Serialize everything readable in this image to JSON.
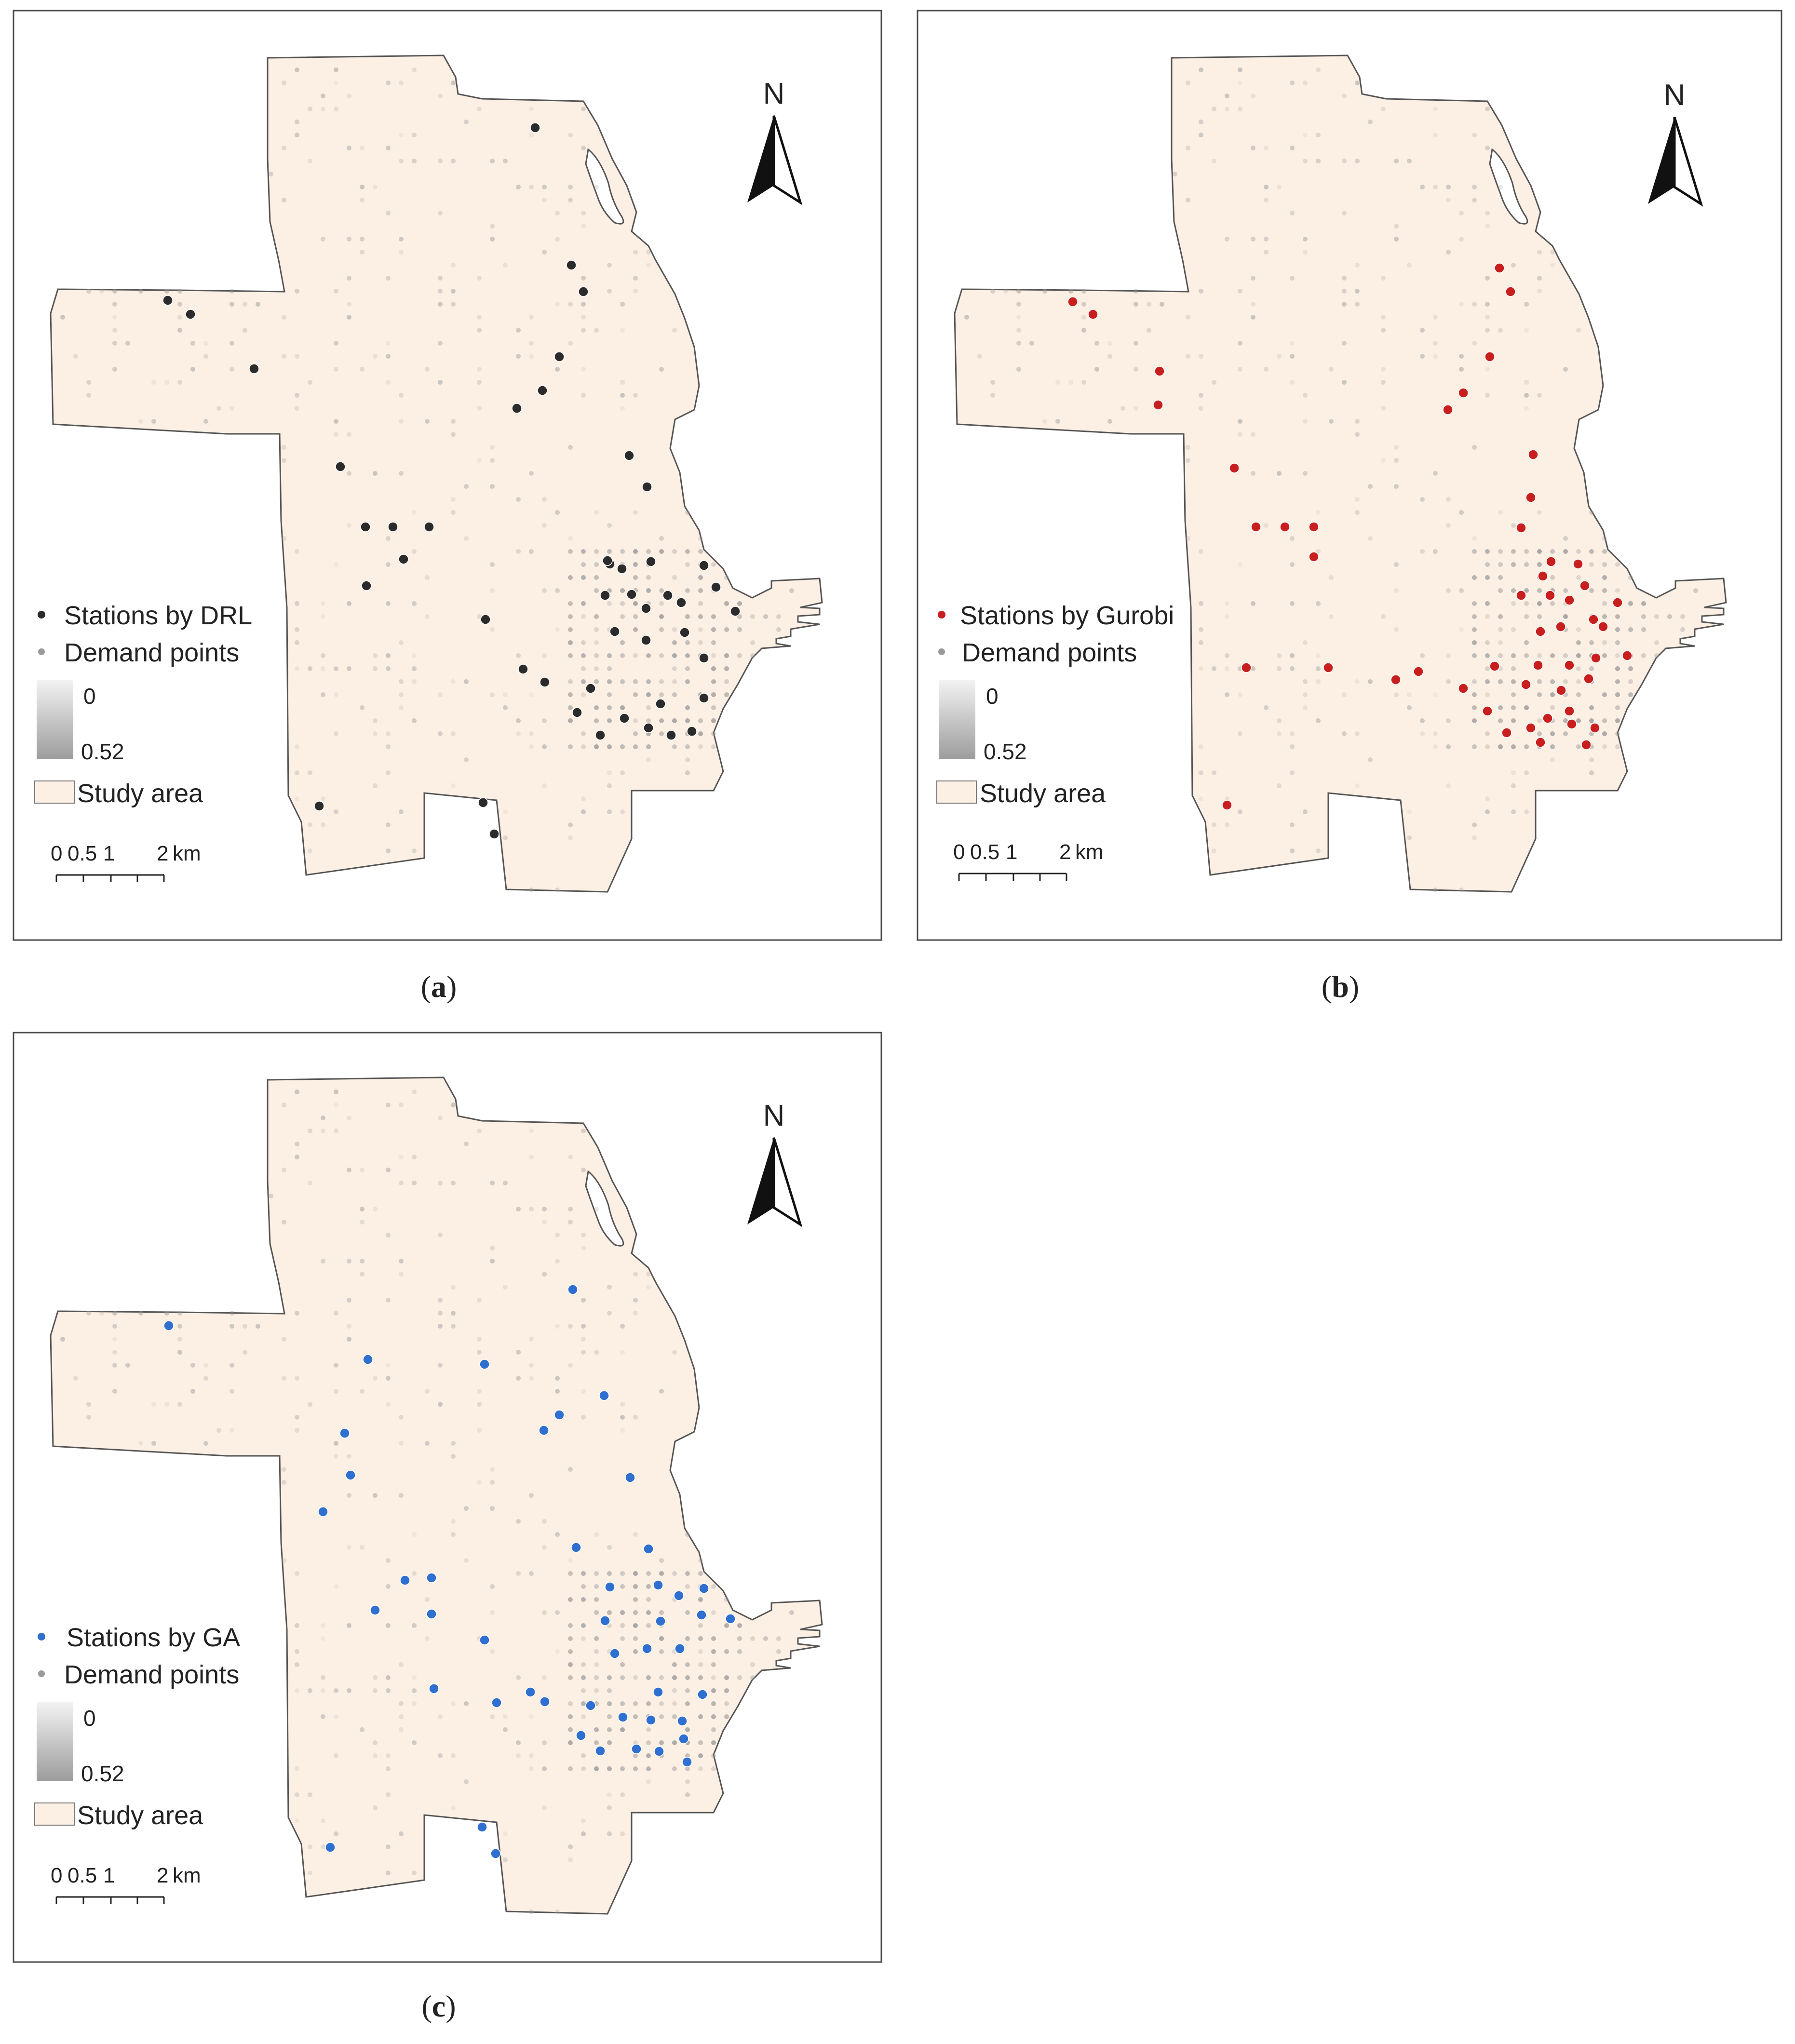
{
  "colors": {
    "frame": "#4a4a4a",
    "study_area_fill": "#fcefe3",
    "study_area_stroke": "#555555",
    "demand_point": "#9a9a9a",
    "demand_ramp_light": "#f3f3f3",
    "demand_ramp_dark": "#9c9c9c",
    "station_drl": "#2b2b2b",
    "station_gurobi": "#c81e1e",
    "station_ga": "#2f6fcf"
  },
  "panels": [
    {
      "id": "a",
      "caption_open": "(",
      "caption_letter": "a",
      "caption_close": ")",
      "north_label": "N",
      "legend": {
        "stations_label": "Stations by DRL",
        "demand_label": "Demand points",
        "ramp_min": "0",
        "ramp_max": "0.52",
        "area_label": "Study area"
      },
      "scale": {
        "t0": "0",
        "t1": "0.5",
        "t2": "1",
        "t3": "2",
        "unit": "km"
      },
      "station_color_key": "station_drl",
      "icon": "north-arrow-icon"
    },
    {
      "id": "b",
      "caption_open": "(",
      "caption_letter": "b",
      "caption_close": ")",
      "north_label": "N",
      "legend": {
        "stations_label": "Stations by Gurobi",
        "demand_label": "Demand points",
        "ramp_min": "0",
        "ramp_max": "0.52",
        "area_label": "Study area"
      },
      "scale": {
        "t0": "0",
        "t1": "0.5",
        "t2": "1",
        "t3": "2",
        "unit": "km"
      },
      "station_color_key": "station_gurobi",
      "icon": "north-arrow-icon"
    },
    {
      "id": "c",
      "caption_open": "(",
      "caption_letter": "c",
      "caption_close": ")",
      "north_label": "N",
      "legend": {
        "stations_label": "Stations by GA",
        "demand_label": "Demand points",
        "ramp_min": "0",
        "ramp_max": "0.52",
        "area_label": "Study area"
      },
      "scale": {
        "t0": "0",
        "t1": "0.5",
        "t2": "1",
        "t3": "2",
        "unit": "km"
      },
      "station_color_key": "station_ga",
      "icon": "north-arrow-icon"
    }
  ]
}
